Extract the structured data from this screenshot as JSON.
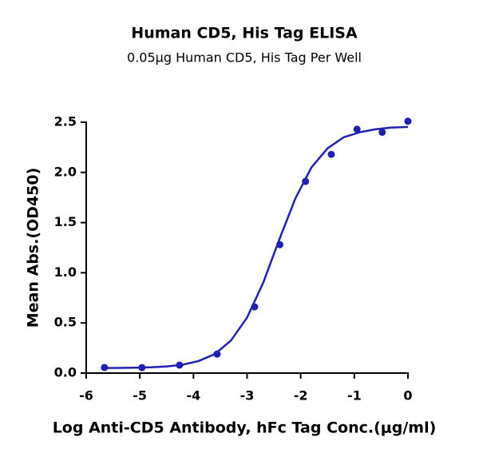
{
  "chart_data": {
    "type": "scatter",
    "title": "Human CD5, His Tag ELISA",
    "subtitle": "0.05μg Human CD5, His Tag Per Well",
    "x_label": "Log Anti-CD5 Antibody, hFc Tag Conc.(μg/ml)",
    "y_label": "Mean Abs.(OD450)",
    "xlim": [
      -6,
      0
    ],
    "xticks": [
      -6,
      -5,
      -4,
      -3,
      -2,
      -1,
      0
    ],
    "ylim": [
      0,
      2.5
    ],
    "yticks": [
      {
        "value": 0,
        "label": "0.0"
      },
      0.5,
      {
        "value": 1,
        "label": "1.0"
      },
      1.5,
      {
        "value": 2,
        "label": "2.0"
      },
      2.5
    ],
    "grid": false,
    "series": [
      {
        "color": "#1f1fb0",
        "x": [
          -5.66,
          -4.96,
          -4.26,
          -3.56,
          -2.86,
          -2.39,
          -1.91,
          -1.43,
          -0.95,
          -0.48,
          0
        ],
        "values": [
          0.056,
          0.055,
          0.08,
          0.19,
          0.66,
          1.28,
          1.91,
          2.18,
          2.43,
          2.4,
          2.51
        ]
      }
    ],
    "curve": {
      "color": "#1f1fb0",
      "x": [
        -5.7,
        -5.4,
        -5.1,
        -4.8,
        -4.5,
        -4.2,
        -3.9,
        -3.6,
        -3.3,
        -3.0,
        -2.7,
        -2.4,
        -2.1,
        -1.8,
        -1.5,
        -1.2,
        -0.9,
        -0.6,
        -0.3,
        0
      ],
      "values": [
        0.051,
        0.052,
        0.054,
        0.058,
        0.067,
        0.084,
        0.121,
        0.19,
        0.325,
        0.554,
        0.9,
        1.33,
        1.74,
        2.05,
        2.24,
        2.35,
        2.4,
        2.43,
        2.447,
        2.453
      ]
    }
  }
}
